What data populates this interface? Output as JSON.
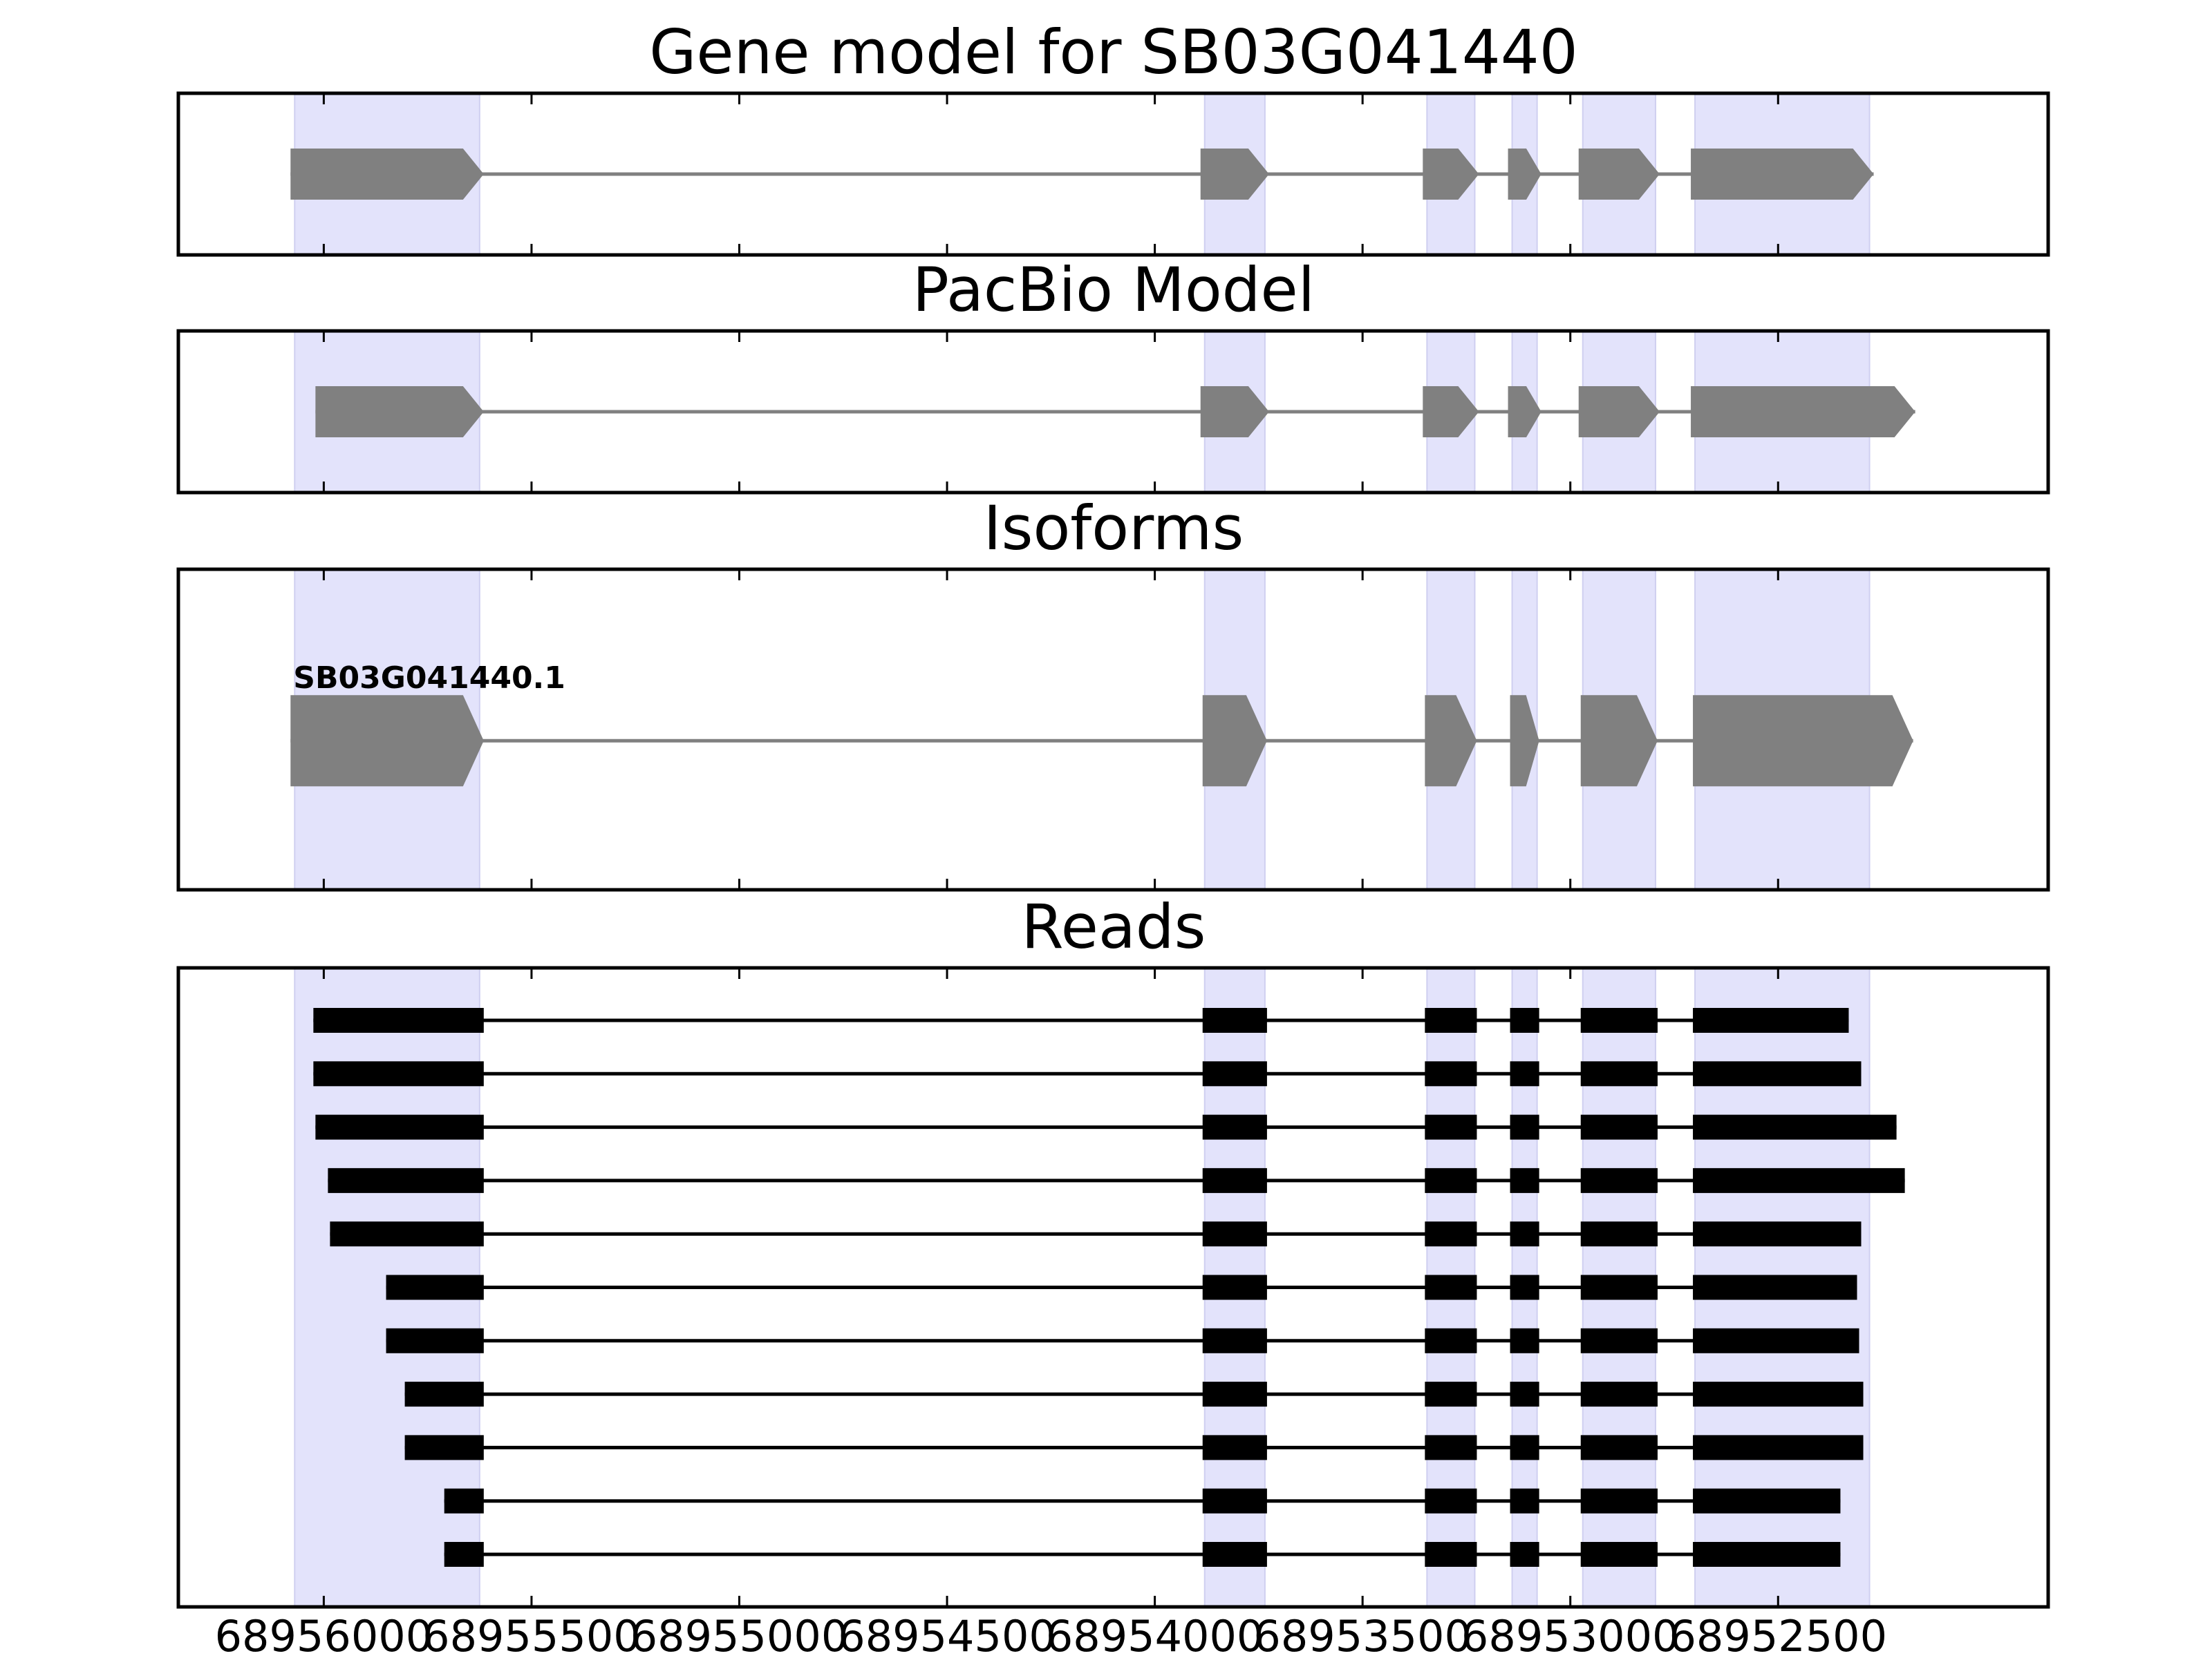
{
  "chart_data": {
    "type": "gene_model_plot",
    "gene_id": "SB03G041440",
    "x_axis": {
      "reversed": true,
      "xlim": [
        68956350,
        68951850
      ],
      "ticks": [
        68956000,
        68955500,
        68955000,
        68954500,
        68954000,
        68953500,
        68953000,
        68952500
      ],
      "tick_labels": [
        "68956000",
        "68955500",
        "68955000",
        "68954500",
        "68954000",
        "68953500",
        "68953000",
        "68952500"
      ]
    },
    "exon_regions": [
      [
        68956070,
        68955625
      ],
      [
        68953880,
        68953735
      ],
      [
        68953345,
        68953230
      ],
      [
        68953140,
        68953080
      ],
      [
        68952970,
        68952795
      ],
      [
        68952700,
        68952280
      ]
    ],
    "panels": [
      {
        "title": "Gene model for SB03G041440",
        "kind": "model",
        "exons": [
          [
            68956080,
            68955615
          ],
          [
            68953890,
            68953725
          ],
          [
            68953355,
            68953220
          ],
          [
            68953150,
            68953070
          ],
          [
            68952980,
            68952785
          ],
          [
            68952710,
            68952270
          ]
        ]
      },
      {
        "title": "PacBio Model",
        "kind": "model",
        "exons": [
          [
            68956020,
            68955615
          ],
          [
            68953890,
            68953725
          ],
          [
            68953355,
            68953220
          ],
          [
            68953150,
            68953070
          ],
          [
            68952980,
            68952785
          ],
          [
            68952710,
            68952170
          ]
        ]
      },
      {
        "title": "Isoforms",
        "kind": "isoforms",
        "isoforms": [
          {
            "name": "SB03G041440.1",
            "exons": [
              [
                68956080,
                68955615
              ],
              [
                68953885,
                68953730
              ],
              [
                68953350,
                68953225
              ],
              [
                68953145,
                68953075
              ],
              [
                68952975,
                68952790
              ],
              [
                68952705,
                68952175
              ]
            ]
          }
        ]
      },
      {
        "title": "Reads",
        "kind": "reads",
        "reads": [
          {
            "start": 68956025,
            "end": 68952330
          },
          {
            "start": 68956025,
            "end": 68952300
          },
          {
            "start": 68956020,
            "end": 68952215
          },
          {
            "start": 68955990,
            "end": 68952195
          },
          {
            "start": 68955985,
            "end": 68952300
          },
          {
            "start": 68955850,
            "end": 68952310
          },
          {
            "start": 68955850,
            "end": 68952305
          },
          {
            "start": 68955805,
            "end": 68952295
          },
          {
            "start": 68955805,
            "end": 68952295
          },
          {
            "start": 68955710,
            "end": 68952350
          },
          {
            "start": 68955710,
            "end": 68952350
          }
        ],
        "read_exons_inner": [
          [
            68953885,
            68953730
          ],
          [
            68953350,
            68953225
          ],
          [
            68953145,
            68953075
          ],
          [
            68952975,
            68952790
          ]
        ],
        "first_exon_end": 68955615,
        "last_exon_start": 68952705
      }
    ],
    "colors": {
      "exon_region": "#e3e3fb",
      "exon_region_edge": "#cfcff0",
      "model_fill": "#808080",
      "intron_line": "#808080",
      "read_fill": "#000000",
      "frame": "#000000"
    }
  }
}
